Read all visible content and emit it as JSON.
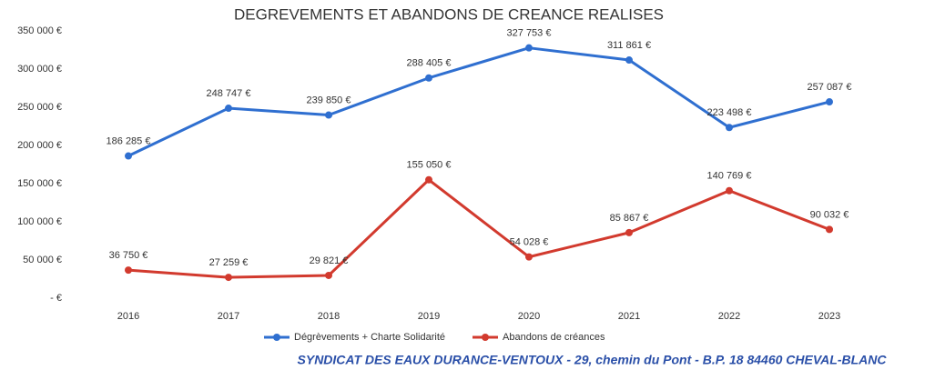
{
  "chart_data": {
    "type": "line",
    "title": "DEGREVEMENTS ET ABANDONS DE CREANCE REALISES",
    "categories": [
      "2016",
      "2017",
      "2018",
      "2019",
      "2020",
      "2021",
      "2022",
      "2023"
    ],
    "series": [
      {
        "name": "Dégrèvements + Charte Solidarité",
        "color": "#2f6fd0",
        "values": [
          186285,
          248747,
          239850,
          288405,
          327753,
          311861,
          223498,
          257087
        ],
        "value_labels": [
          "186 285 €",
          "248 747 €",
          "239 850 €",
          "288 405 €",
          "327 753 €",
          "311 861 €",
          "223 498 €",
          "257 087 €"
        ]
      },
      {
        "name": "Abandons de créances",
        "color": "#d23a2e",
        "values": [
          36750,
          27259,
          29821,
          155050,
          54028,
          85867,
          140769,
          90032
        ],
        "value_labels": [
          "36 750 €",
          "27 259 €",
          "29 821 €",
          "155 050 €",
          "54 028 €",
          "85 867 €",
          "140 769 €",
          "90 032 €"
        ]
      }
    ],
    "ylim": [
      0,
      350000
    ],
    "yticks": [
      {
        "value": 0,
        "label": "-   €"
      },
      {
        "value": 50000,
        "label": "50 000 €"
      },
      {
        "value": 100000,
        "label": "100 000 €"
      },
      {
        "value": 150000,
        "label": "150 000 €"
      },
      {
        "value": 200000,
        "label": "200 000 €"
      },
      {
        "value": 250000,
        "label": "250 000 €"
      },
      {
        "value": 300000,
        "label": "300 000 €"
      },
      {
        "value": 350000,
        "label": "350 000 €"
      }
    ],
    "grid": false,
    "legend": "bottom",
    "footer": "SYNDICAT DES EAUX DURANCE-VENTOUX - 29, chemin du Pont - B.P. 18 84460 CHEVAL-BLANC"
  }
}
